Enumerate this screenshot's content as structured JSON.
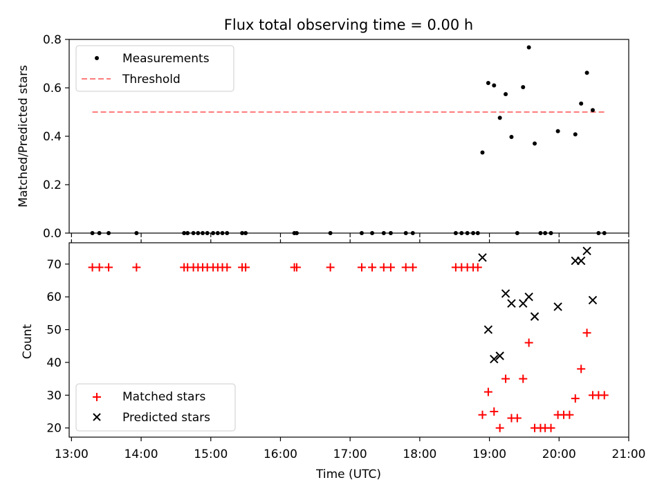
{
  "chart_data": [
    {
      "type": "scatter",
      "title": "Flux total observing time = 0.00 h",
      "xlabel": "",
      "ylabel": "Matched/Predicted stars",
      "xlim": [
        "12:58",
        "21:00"
      ],
      "ylim": [
        0,
        0.8
      ],
      "yticks": [
        "0.0",
        "0.2",
        "0.4",
        "0.6",
        "0.8"
      ],
      "legend_position": "upper-left",
      "series": [
        {
          "name": "Measurements",
          "marker": "dot",
          "color": "#000000",
          "points": [
            {
              "x": "13:18",
              "y": 0.0
            },
            {
              "x": "13:24",
              "y": 0.0
            },
            {
              "x": "13:32",
              "y": 0.0
            },
            {
              "x": "13:56",
              "y": 0.0
            },
            {
              "x": "14:37",
              "y": 0.0
            },
            {
              "x": "14:40",
              "y": 0.0
            },
            {
              "x": "14:45",
              "y": 0.0
            },
            {
              "x": "14:49",
              "y": 0.0
            },
            {
              "x": "14:53",
              "y": 0.0
            },
            {
              "x": "14:57",
              "y": 0.0
            },
            {
              "x": "15:02",
              "y": 0.0
            },
            {
              "x": "15:06",
              "y": 0.0
            },
            {
              "x": "15:10",
              "y": 0.0
            },
            {
              "x": "15:14",
              "y": 0.0
            },
            {
              "x": "15:27",
              "y": 0.0
            },
            {
              "x": "15:30",
              "y": 0.0
            },
            {
              "x": "16:12",
              "y": 0.0
            },
            {
              "x": "16:14",
              "y": 0.0
            },
            {
              "x": "16:43",
              "y": 0.0
            },
            {
              "x": "17:10",
              "y": 0.0
            },
            {
              "x": "17:19",
              "y": 0.0
            },
            {
              "x": "17:29",
              "y": 0.0
            },
            {
              "x": "17:35",
              "y": 0.0
            },
            {
              "x": "17:48",
              "y": 0.0
            },
            {
              "x": "17:54",
              "y": 0.0
            },
            {
              "x": "18:31",
              "y": 0.0
            },
            {
              "x": "18:36",
              "y": 0.0
            },
            {
              "x": "18:41",
              "y": 0.0
            },
            {
              "x": "18:46",
              "y": 0.0
            },
            {
              "x": "18:50",
              "y": 0.0
            },
            {
              "x": "18:54",
              "y": 0.333
            },
            {
              "x": "18:59",
              "y": 0.62
            },
            {
              "x": "19:04",
              "y": 0.61
            },
            {
              "x": "19:09",
              "y": 0.476
            },
            {
              "x": "19:14",
              "y": 0.574
            },
            {
              "x": "19:19",
              "y": 0.397
            },
            {
              "x": "19:24",
              "y": 0.0
            },
            {
              "x": "19:29",
              "y": 0.603
            },
            {
              "x": "19:34",
              "y": 0.767
            },
            {
              "x": "19:39",
              "y": 0.37
            },
            {
              "x": "19:44",
              "y": 0.0
            },
            {
              "x": "19:48",
              "y": 0.0
            },
            {
              "x": "19:53",
              "y": 0.0
            },
            {
              "x": "19:59",
              "y": 0.421
            },
            {
              "x": "20:14",
              "y": 0.408
            },
            {
              "x": "20:19",
              "y": 0.535
            },
            {
              "x": "20:24",
              "y": 0.662
            },
            {
              "x": "20:29",
              "y": 0.508
            },
            {
              "x": "20:34",
              "y": 0.0
            },
            {
              "x": "20:39",
              "y": 0.0
            }
          ]
        },
        {
          "name": "Threshold",
          "marker": "dashed-line",
          "color": "#ff7b7b",
          "x": [
            "13:18",
            "20:39"
          ],
          "y": [
            0.5,
            0.5
          ]
        }
      ]
    },
    {
      "type": "scatter",
      "title": "",
      "xlabel": "Time (UTC)",
      "ylabel": "Count",
      "xlim": [
        "12:58",
        "21:00"
      ],
      "ylim": [
        17.2,
        76.5
      ],
      "yticks": [
        "20",
        "30",
        "40",
        "50",
        "60",
        "70"
      ],
      "xticks": [
        "13:00",
        "14:00",
        "15:00",
        "16:00",
        "17:00",
        "18:00",
        "19:00",
        "20:00",
        "21:00"
      ],
      "legend_position": "lower-left",
      "series": [
        {
          "name": "Matched stars",
          "marker": "plus",
          "color": "#ff0000",
          "points": [
            {
              "x": "13:18",
              "y": 69
            },
            {
              "x": "13:24",
              "y": 69
            },
            {
              "x": "13:32",
              "y": 69
            },
            {
              "x": "13:56",
              "y": 69
            },
            {
              "x": "14:37",
              "y": 69
            },
            {
              "x": "14:40",
              "y": 69
            },
            {
              "x": "14:45",
              "y": 69
            },
            {
              "x": "14:49",
              "y": 69
            },
            {
              "x": "14:53",
              "y": 69
            },
            {
              "x": "14:57",
              "y": 69
            },
            {
              "x": "15:02",
              "y": 69
            },
            {
              "x": "15:06",
              "y": 69
            },
            {
              "x": "15:10",
              "y": 69
            },
            {
              "x": "15:14",
              "y": 69
            },
            {
              "x": "15:27",
              "y": 69
            },
            {
              "x": "15:30",
              "y": 69
            },
            {
              "x": "16:12",
              "y": 69
            },
            {
              "x": "16:14",
              "y": 69
            },
            {
              "x": "16:43",
              "y": 69
            },
            {
              "x": "17:10",
              "y": 69
            },
            {
              "x": "17:19",
              "y": 69
            },
            {
              "x": "17:29",
              "y": 69
            },
            {
              "x": "17:35",
              "y": 69
            },
            {
              "x": "17:48",
              "y": 69
            },
            {
              "x": "17:54",
              "y": 69
            },
            {
              "x": "18:31",
              "y": 69
            },
            {
              "x": "18:36",
              "y": 69
            },
            {
              "x": "18:41",
              "y": 69
            },
            {
              "x": "18:46",
              "y": 69
            },
            {
              "x": "18:50",
              "y": 69
            },
            {
              "x": "18:54",
              "y": 24
            },
            {
              "x": "18:59",
              "y": 31
            },
            {
              "x": "19:04",
              "y": 25
            },
            {
              "x": "19:09",
              "y": 20
            },
            {
              "x": "19:14",
              "y": 35
            },
            {
              "x": "19:19",
              "y": 23
            },
            {
              "x": "19:24",
              "y": 23
            },
            {
              "x": "19:29",
              "y": 35
            },
            {
              "x": "19:34",
              "y": 46
            },
            {
              "x": "19:39",
              "y": 20
            },
            {
              "x": "19:44",
              "y": 20
            },
            {
              "x": "19:48",
              "y": 20
            },
            {
              "x": "19:53",
              "y": 20
            },
            {
              "x": "19:59",
              "y": 24
            },
            {
              "x": "20:04",
              "y": 24
            },
            {
              "x": "20:09",
              "y": 24
            },
            {
              "x": "20:14",
              "y": 29
            },
            {
              "x": "20:19",
              "y": 38
            },
            {
              "x": "20:24",
              "y": 49
            },
            {
              "x": "20:29",
              "y": 30
            },
            {
              "x": "20:34",
              "y": 30
            },
            {
              "x": "20:39",
              "y": 30
            }
          ]
        },
        {
          "name": "Predicted stars",
          "marker": "x",
          "color": "#000000",
          "points": [
            {
              "x": "18:54",
              "y": 72
            },
            {
              "x": "18:59",
              "y": 50
            },
            {
              "x": "19:04",
              "y": 41
            },
            {
              "x": "19:09",
              "y": 42
            },
            {
              "x": "19:14",
              "y": 61
            },
            {
              "x": "19:19",
              "y": 58
            },
            {
              "x": "19:29",
              "y": 58
            },
            {
              "x": "19:34",
              "y": 60
            },
            {
              "x": "19:39",
              "y": 54
            },
            {
              "x": "19:59",
              "y": 57
            },
            {
              "x": "20:14",
              "y": 71
            },
            {
              "x": "20:19",
              "y": 71
            },
            {
              "x": "20:24",
              "y": 74
            },
            {
              "x": "20:29",
              "y": 59
            }
          ]
        }
      ]
    }
  ]
}
